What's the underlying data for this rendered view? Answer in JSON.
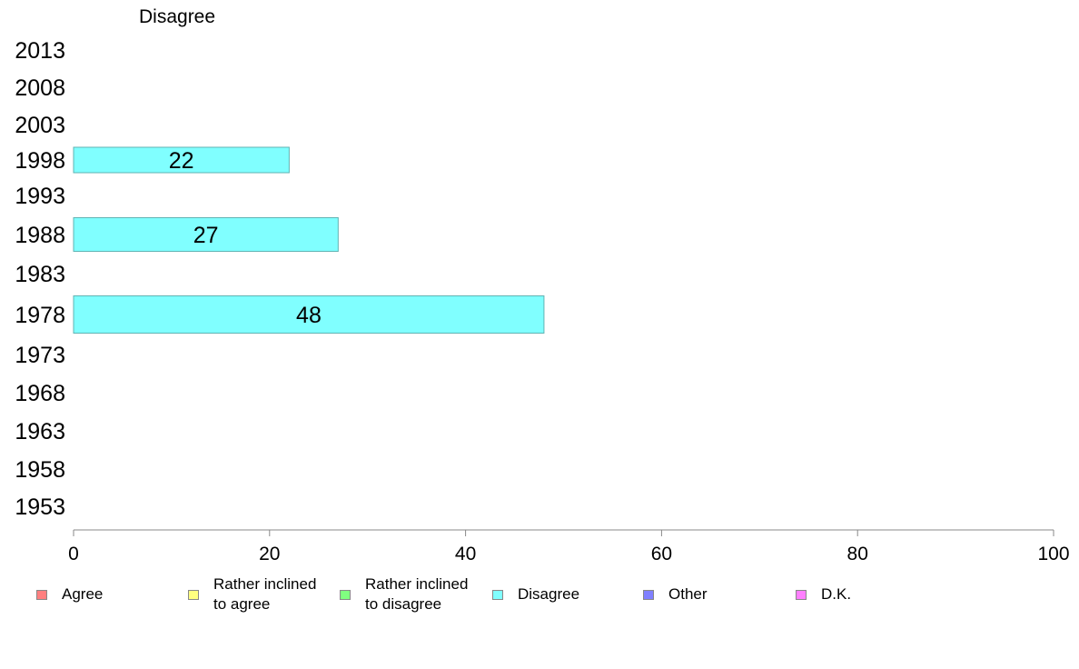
{
  "chart_data": {
    "type": "bar",
    "orientation": "horizontal",
    "title": "Disagree",
    "categories": [
      "2013",
      "2008",
      "2003",
      "1998",
      "1993",
      "1988",
      "1983",
      "1978",
      "1973",
      "1968",
      "1963",
      "1958",
      "1953"
    ],
    "series": [
      {
        "name": "Disagree",
        "values": [
          null,
          null,
          null,
          22,
          null,
          27,
          null,
          48,
          null,
          null,
          null,
          null,
          null
        ],
        "color": "#80ffff"
      }
    ],
    "data_labels": [
      "",
      "",
      "",
      "22",
      "",
      "27",
      "",
      "48",
      "",
      "",
      "",
      "",
      ""
    ],
    "xlim": [
      0,
      100
    ],
    "xticks": [
      "0",
      "20",
      "40",
      "60",
      "80",
      "100"
    ],
    "grid": false,
    "legend_position": "bottom",
    "legend": [
      {
        "label": "Agree",
        "color": "#ff8080"
      },
      {
        "label": "Rather inclined\nto agree",
        "color": "#ffff80"
      },
      {
        "label": "Rather inclined\nto disagree",
        "color": "#80ff80"
      },
      {
        "label": "Disagree",
        "color": "#80ffff"
      },
      {
        "label": "Other",
        "color": "#8080ff"
      },
      {
        "label": "D.K.",
        "color": "#ff80ff"
      }
    ]
  }
}
